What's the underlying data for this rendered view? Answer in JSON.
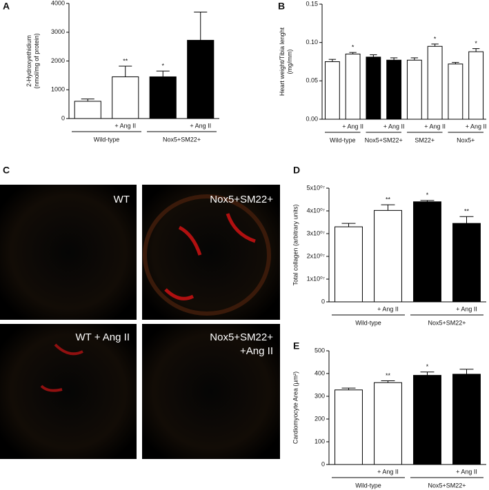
{
  "chart_data": [
    {
      "type": "bar",
      "panel_label": "A",
      "ylabel": [
        "2-Hydroxyethidium",
        "(nmol/mg of protein)"
      ],
      "categories": [
        null,
        "+ Ang II",
        null,
        "+ Ang II"
      ],
      "groups": [
        "Wild-type",
        "Nox5+SM22+"
      ],
      "values": [
        600,
        1450,
        1450,
        2720
      ],
      "errors": [
        80,
        370,
        200,
        980
      ],
      "colors": [
        "#ffffff",
        "#ffffff",
        "#000000",
        "#000000"
      ],
      "annotations": [
        null,
        "**",
        "*",
        null
      ],
      "ylim": [
        0,
        4000
      ],
      "yticks": [
        0,
        1000,
        2000,
        3000,
        4000
      ]
    },
    {
      "type": "bar",
      "panel_label": "B",
      "ylabel": [
        "Heart weight/Tibia lenght",
        "(mg/mm)"
      ],
      "categories": [
        null,
        "+ Ang II",
        null,
        "+ Ang II",
        null,
        "+ Ang II",
        null,
        "+ Ang II"
      ],
      "groups": [
        "Wild-type",
        "Nox5+SM22+",
        "SM22+",
        "Nox5+"
      ],
      "values": [
        0.075,
        0.085,
        0.081,
        0.077,
        0.077,
        0.095,
        0.072,
        0.088
      ],
      "errors": [
        0.003,
        0.002,
        0.003,
        0.003,
        0.003,
        0.003,
        0.002,
        0.004
      ],
      "colors": [
        "#ffffff",
        "#ffffff",
        "#000000",
        "#000000",
        "#ffffff",
        "#ffffff",
        "#ffffff",
        "#ffffff"
      ],
      "annotations": [
        null,
        "*",
        null,
        null,
        null,
        "*",
        null,
        "*"
      ],
      "ylim": [
        0,
        0.15
      ],
      "yticks": [
        {
          "value": 0,
          "label": "0.00"
        },
        0.05,
        {
          "value": 0.1,
          "label": "0.10"
        },
        0.15
      ]
    },
    {
      "type": "bar",
      "panel_label": "D",
      "ylabel": [
        "Total collagen (arbitrary units)"
      ],
      "categories": [
        null,
        "+ Ang II",
        null,
        "+ Ang II"
      ],
      "groups": [
        "Wild-type",
        "Nox5+SM22+"
      ],
      "values": [
        33000000,
        40200000,
        44000000,
        34500000
      ],
      "errors": [
        1500000,
        2500000,
        600000,
        3000000
      ],
      "colors": [
        "#ffffff",
        "#ffffff",
        "#000000",
        "#000000"
      ],
      "annotations": [
        null,
        "**",
        "*",
        "**"
      ],
      "ylim": [
        0,
        50000000
      ],
      "yticks": [
        0,
        {
          "value": 10000000,
          "label": "1x10⁰⁷"
        },
        {
          "value": 20000000,
          "label": "2x10⁰⁷"
        },
        {
          "value": 30000000,
          "label": "3x10⁰⁷"
        },
        {
          "value": 40000000,
          "label": "4x10⁰⁷"
        },
        {
          "value": 50000000,
          "label": "5x10⁰⁷"
        }
      ]
    },
    {
      "type": "bar",
      "panel_label": "E",
      "ylabel": [
        "Cardiomyocyte Area (µm²)"
      ],
      "categories": [
        null,
        "+ Ang II",
        null,
        "+ Ang II"
      ],
      "groups": [
        "Wild-type",
        "Nox5+SM22+"
      ],
      "values": [
        328,
        360,
        392,
        397
      ],
      "errors": [
        8,
        8,
        15,
        22
      ],
      "colors": [
        "#ffffff",
        "#ffffff",
        "#000000",
        "#000000"
      ],
      "annotations": [
        null,
        "**",
        "*",
        null
      ],
      "ylim": [
        0,
        500
      ],
      "yticks": [
        0,
        100,
        200,
        300,
        400,
        500
      ]
    }
  ],
  "images": {
    "panel_label": "C",
    "captions": [
      [
        "WT"
      ],
      [
        "Nox5+SM22+"
      ],
      [
        "WT + Ang II"
      ],
      [
        "Nox5+SM22+",
        "+Ang II"
      ]
    ]
  }
}
